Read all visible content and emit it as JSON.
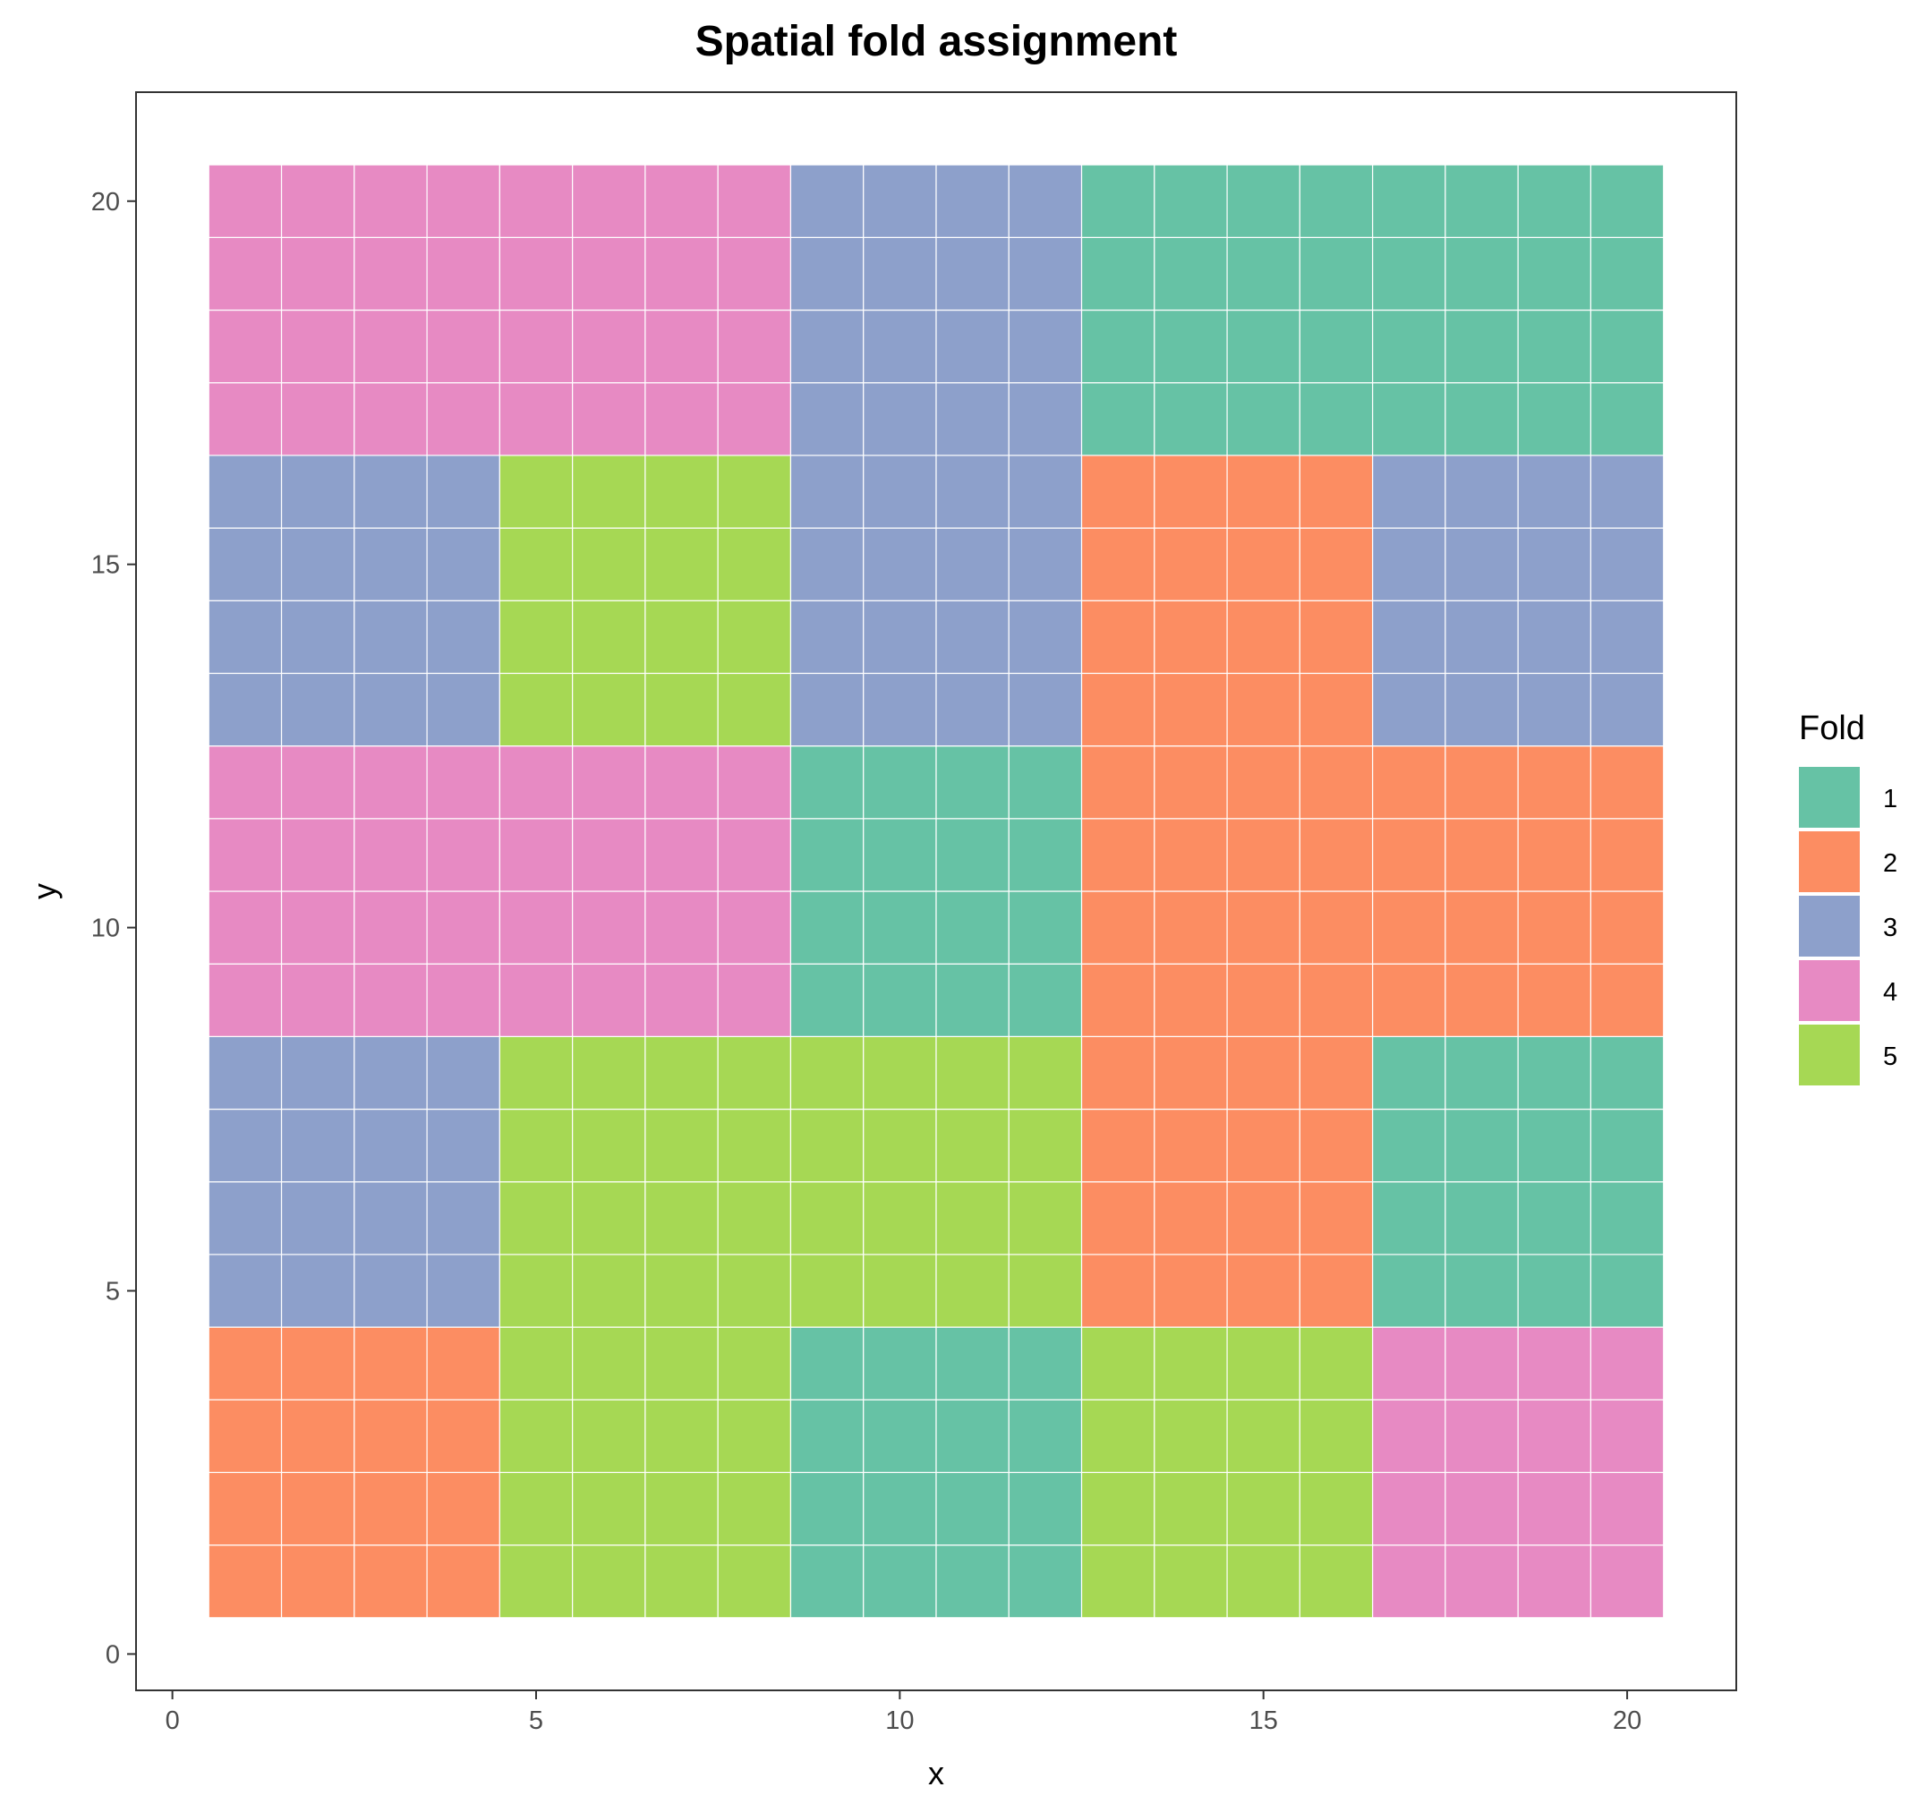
{
  "chart_data": {
    "type": "heatmap",
    "title": "Spatial fold assignment",
    "xlabel": "x",
    "ylabel": "y",
    "xlim": [
      -0.5,
      21.5
    ],
    "ylim": [
      -0.5,
      21.5
    ],
    "x_ticks": [
      0,
      5,
      10,
      15,
      20
    ],
    "y_ticks": [
      0,
      5,
      10,
      15,
      20
    ],
    "grid": false,
    "legend": {
      "title": "Fold",
      "position": "right",
      "entries": [
        {
          "label": "1",
          "color": "#66c2a5"
        },
        {
          "label": "2",
          "color": "#fc8d62"
        },
        {
          "label": "3",
          "color": "#8da0cb"
        },
        {
          "label": "4",
          "color": "#e78ac3"
        },
        {
          "label": "5",
          "color": "#a6d854"
        }
      ]
    },
    "grid_size": 20,
    "block_size": 4,
    "block_folds_bottom_to_top": [
      [
        2,
        5,
        1,
        5,
        4
      ],
      [
        3,
        5,
        5,
        2,
        1
      ],
      [
        4,
        4,
        1,
        2,
        2
      ],
      [
        3,
        5,
        3,
        2,
        3
      ],
      [
        4,
        4,
        3,
        1,
        1
      ]
    ]
  }
}
